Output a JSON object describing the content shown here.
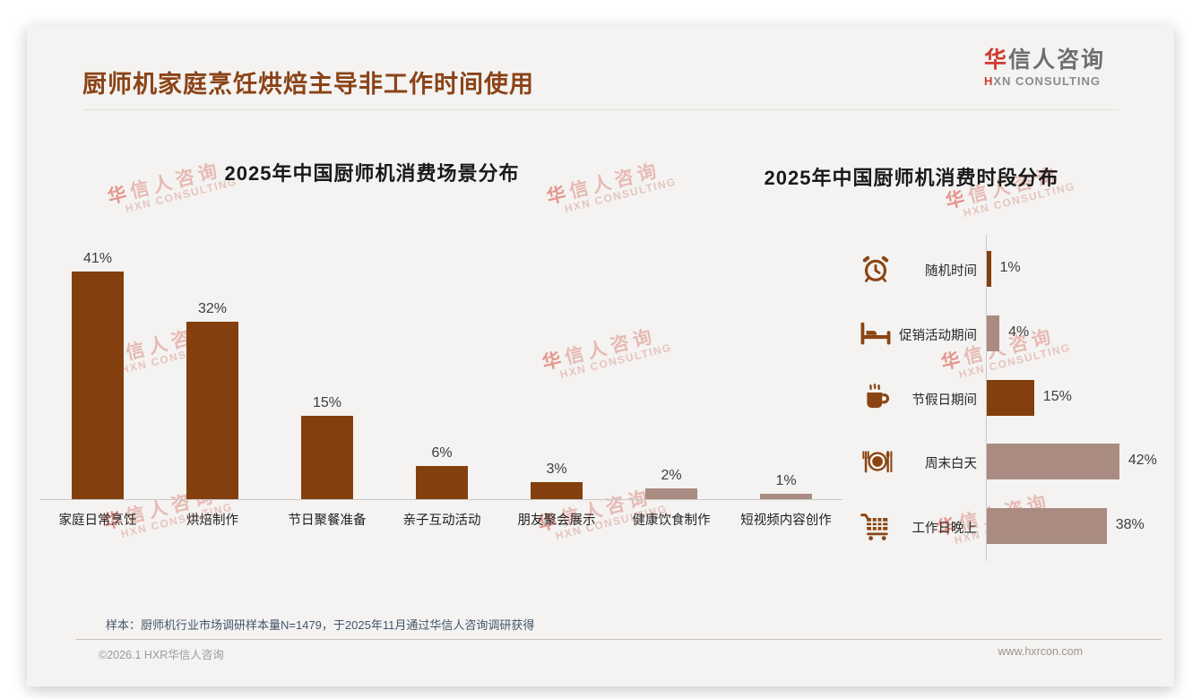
{
  "header": {
    "title": "厨师机家庭烹饪烘焙主导非工作时间使用",
    "logo": {
      "cn_accent": "华",
      "cn_rest": "信人咨询",
      "en_accent": "H",
      "en_rest": "XN CONSULTING"
    }
  },
  "watermark": {
    "cn_accent": "华",
    "cn_rest": "信人咨询",
    "en": "HXN CONSULTING"
  },
  "colors": {
    "title": "#8A4317",
    "dark_bar": "#833F0E",
    "light_bar": "#A98B82",
    "icon": "#8A4513",
    "axis": "#C9C9C9"
  },
  "chart_data": [
    {
      "type": "bar",
      "orientation": "vertical",
      "title": "2025年中国厨师机消费场景分布",
      "categories": [
        "家庭日常烹饪",
        "烘焙制作",
        "节日聚餐准备",
        "亲子互动活动",
        "朋友聚会展示",
        "健康饮食制作",
        "短视频内容创作"
      ],
      "values": [
        41,
        32,
        15,
        6,
        3,
        2,
        1
      ],
      "unit": "%",
      "bar_palette": [
        "dark",
        "dark",
        "dark",
        "dark",
        "dark",
        "light",
        "light"
      ],
      "ylim": [
        0,
        45
      ],
      "grid": false,
      "value_labels": true,
      "legend": "none"
    },
    {
      "type": "bar",
      "orientation": "horizontal",
      "title": "2025年中国厨师机消费时段分布",
      "categories": [
        "随机时间",
        "促销活动期间",
        "节假日期间",
        "周末白天",
        "工作日晚上"
      ],
      "values": [
        1,
        4,
        15,
        42,
        38
      ],
      "unit": "%",
      "bar_palette": [
        "dark",
        "light",
        "dark",
        "light",
        "light"
      ],
      "icons": [
        "alarm-clock-icon",
        "bed-icon",
        "coffee-mug-icon",
        "plate-cutlery-icon",
        "shopping-cart-icon"
      ],
      "xlim": [
        0,
        45
      ],
      "grid": false,
      "value_labels": true,
      "legend": "none"
    }
  ],
  "footnote": "样本：厨师机行业市场调研样本量N=1479，于2025年11月通过华信人咨询调研获得",
  "footer": {
    "left": "©2026.1 HXR华信人咨询",
    "right": "www.hxrcon.com"
  }
}
